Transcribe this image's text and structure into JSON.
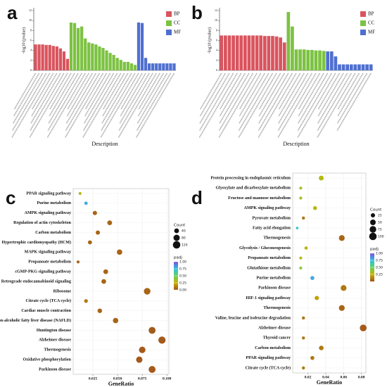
{
  "chart_data": [
    {
      "type": "bar",
      "panel": "a",
      "y_label": "-log10 (pvalue)",
      "x_label": "Description",
      "ylim": [
        0,
        12
      ],
      "yticks": [
        0,
        2,
        4,
        6,
        8,
        10,
        12
      ],
      "categories": [
        null,
        null,
        null,
        null,
        null,
        null,
        null,
        null,
        null,
        null,
        null,
        null,
        null,
        null,
        null,
        null,
        null,
        null,
        null,
        null,
        null,
        null,
        null,
        null,
        null,
        null,
        null,
        null,
        null,
        null,
        null,
        null,
        null,
        null,
        null,
        null,
        null,
        null,
        null,
        null
      ],
      "series": [
        {
          "name": "BP",
          "color": "#d9545e",
          "values": [
            5.2,
            5.2,
            5.2,
            5.1,
            5.1,
            4.9,
            4.8,
            4.4,
            3.8,
            2.3,
            null,
            null,
            null,
            null,
            null,
            null,
            null,
            null,
            null,
            null,
            null,
            null,
            null,
            null,
            null,
            null,
            null,
            null,
            null,
            null,
            null,
            null,
            null,
            null,
            null,
            null,
            null,
            null,
            null,
            null
          ]
        },
        {
          "name": "CC",
          "color": "#7cc242",
          "values": [
            null,
            null,
            null,
            null,
            null,
            null,
            null,
            null,
            null,
            null,
            9.6,
            9.5,
            8.5,
            8.8,
            6.4,
            5.6,
            5.4,
            5.2,
            4.8,
            4.5,
            4.0,
            3.5,
            3.1,
            2.5,
            2.1,
            1.7,
            1.7,
            1.4,
            1.1,
            null,
            null,
            null,
            null,
            null,
            null,
            null,
            null,
            null,
            null,
            null
          ]
        },
        {
          "name": "MF",
          "color": "#4f6fd0",
          "values": [
            null,
            null,
            null,
            null,
            null,
            null,
            null,
            null,
            null,
            null,
            null,
            null,
            null,
            null,
            null,
            null,
            null,
            null,
            null,
            null,
            null,
            null,
            null,
            null,
            null,
            null,
            null,
            null,
            null,
            9.6,
            9.5,
            2.5,
            1.4,
            1.4,
            1.4,
            1.4,
            1.4,
            1.4,
            1.4,
            1.4
          ]
        }
      ]
    },
    {
      "type": "bar",
      "panel": "b",
      "y_label": "-log10 (pvalue)",
      "x_label": "Description",
      "ylim": [
        0,
        12
      ],
      "yticks": [
        0,
        2,
        4,
        6,
        8,
        10,
        12
      ],
      "categories": [
        null,
        null,
        null,
        null,
        null,
        null,
        null,
        null,
        null,
        null,
        null,
        null,
        null,
        null,
        null,
        null,
        null,
        null,
        null,
        null,
        null,
        null,
        null,
        null,
        null,
        null,
        null,
        null,
        null,
        null,
        null,
        null,
        null,
        null,
        null,
        null,
        null,
        null,
        null
      ],
      "series": [
        {
          "name": "BP",
          "color": "#d9545e",
          "values": [
            7.0,
            7.0,
            7.0,
            7.0,
            7.0,
            7.0,
            7.0,
            7.0,
            7.0,
            7.0,
            7.0,
            6.9,
            6.9,
            6.9,
            6.8,
            6.6,
            5.6,
            null,
            null,
            null,
            null,
            null,
            null,
            null,
            null,
            null,
            null,
            null,
            null,
            null,
            null,
            null,
            null,
            null,
            null,
            null,
            null,
            null,
            null
          ]
        },
        {
          "name": "CC",
          "color": "#7cc242",
          "values": [
            null,
            null,
            null,
            null,
            null,
            null,
            null,
            null,
            null,
            null,
            null,
            null,
            null,
            null,
            null,
            null,
            null,
            11.7,
            8.8,
            4.2,
            4.2,
            4.2,
            4.1,
            4.1,
            4.0,
            4.0,
            3.9,
            null,
            null,
            null,
            null,
            null,
            null,
            null,
            null,
            null,
            null,
            null,
            null
          ]
        },
        {
          "name": "MF",
          "color": "#4f6fd0",
          "values": [
            null,
            null,
            null,
            null,
            null,
            null,
            null,
            null,
            null,
            null,
            null,
            null,
            null,
            null,
            null,
            null,
            null,
            null,
            null,
            null,
            null,
            null,
            null,
            null,
            null,
            null,
            null,
            3.8,
            3.8,
            2.8,
            1.2,
            1.2,
            1.2,
            1.2,
            1.2,
            1.2,
            1.2,
            1.2,
            1.2
          ]
        }
      ]
    },
    {
      "type": "scatter",
      "panel": "c",
      "x_label": "GeneRatio",
      "xlim": [
        0.005,
        0.102
      ],
      "xticks": [
        0.025,
        {
          "value": 0.05,
          "label": "0.050"
        },
        0.075,
        {
          "value": 0.1,
          "label": "0.100"
        }
      ],
      "categories": [
        "PPAR signaling pathway",
        "Purine metabolism",
        "AMPK signaling pathway",
        "Regulation of actin cytoskeleton",
        "Carbon metabolism",
        "Hypertrophic cardiomyopathy (HCM)",
        "MAPK signaling pathway",
        "Propanoate metabolism",
        "cGMP-PKG signaling pathway",
        "Retrograde endocannabinoid signaling",
        "Ribosome",
        "Citrate cycle (TCA cycle)",
        "Cardiac muscle contraction",
        "Non-alcoholic fatty liver disease (NAFLD)",
        "Huntington disease",
        "Alzheimer disease",
        "Thermogenesis",
        "Oxidative phosphorylation",
        "Parkinson disease"
      ],
      "x": [
        0.012,
        0.018,
        0.027,
        0.042,
        0.03,
        0.022,
        0.052,
        0.01,
        0.038,
        0.036,
        0.08,
        0.018,
        0.032,
        0.048,
        0.085,
        0.095,
        0.075,
        0.072,
        0.085
      ],
      "count": [
        10,
        15,
        30,
        40,
        30,
        25,
        55,
        10,
        40,
        40,
        90,
        20,
        35,
        55,
        100,
        110,
        85,
        80,
        100
      ],
      "padj": [
        0.3,
        0.8,
        0.05,
        0.05,
        0.05,
        0.05,
        0.05,
        0.05,
        0.05,
        0.05,
        0.05,
        0.1,
        0.05,
        0.05,
        0.02,
        0.02,
        0.02,
        0.02,
        0.02
      ],
      "size_label": "Count",
      "size_ticks": [
        40,
        80,
        120
      ],
      "color_label": "padj",
      "colorlim": [
        0,
        1
      ],
      "color_ticks": [
        {
          "value": 0,
          "label": "0.00"
        },
        {
          "value": 0.25,
          "label": "0.25"
        },
        {
          "value": 0.5,
          "label": "0.50"
        },
        {
          "value": 0.75,
          "label": "0.75"
        },
        {
          "value": 1,
          "label": "1.00"
        }
      ]
    },
    {
      "type": "scatter",
      "panel": "d",
      "x_label": "GeneRatio",
      "xlim": [
        0.003,
        0.085
      ],
      "xticks": [
        0.02,
        0.04,
        0.06,
        0.08
      ],
      "categories": [
        "Protein processing in endoplasmic reticulum",
        "Glyoxylate and dicarboxylate metabolism",
        "Fructose and mannose metabolism",
        "AMPK signaling pathway",
        "Pyruvate metabolism",
        "Fatty acid elongation",
        "Thermogenesis",
        "Glycolysis / Gluconeogenesis",
        "Propanoate metabolism",
        "Glutathione metabolism",
        "Purine metabolism",
        "Parkinson disease",
        "HIF-1 signaling pathway",
        "Thermogenesis",
        "Valine, leucine and isoleucine degradation",
        "Alzheimer disease",
        "Thyroid cancer",
        "Carbon metabolism",
        "PPAR signaling pathway",
        "Citrate cycle (TCA cycle)"
      ],
      "x": [
        0.035,
        0.012,
        0.012,
        0.028,
        0.015,
        0.008,
        0.058,
        0.018,
        0.012,
        0.012,
        0.025,
        0.06,
        0.03,
        0.058,
        0.015,
        0.082,
        0.015,
        0.035,
        0.025,
        0.015
      ],
      "count": [
        35,
        8,
        8,
        20,
        10,
        5,
        55,
        12,
        8,
        8,
        20,
        55,
        25,
        55,
        10,
        80,
        10,
        30,
        20,
        10
      ],
      "padj": [
        0.3,
        0.35,
        0.35,
        0.3,
        0.1,
        0.7,
        0.05,
        0.3,
        0.3,
        0.4,
        0.8,
        0.1,
        0.2,
        0.05,
        0.1,
        0.02,
        0.1,
        0.1,
        0.1,
        0.1
      ],
      "size_label": "Count",
      "size_ticks": [
        25,
        50,
        75,
        100
      ],
      "color_label": "padj",
      "colorlim": [
        0,
        1
      ],
      "color_ticks": [
        {
          "value": 0.25,
          "label": "0.25"
        },
        {
          "value": 0.5,
          "label": "0.50"
        },
        {
          "value": 0.75,
          "label": "0.75"
        },
        {
          "value": 1,
          "label": "1.00"
        }
      ]
    }
  ]
}
